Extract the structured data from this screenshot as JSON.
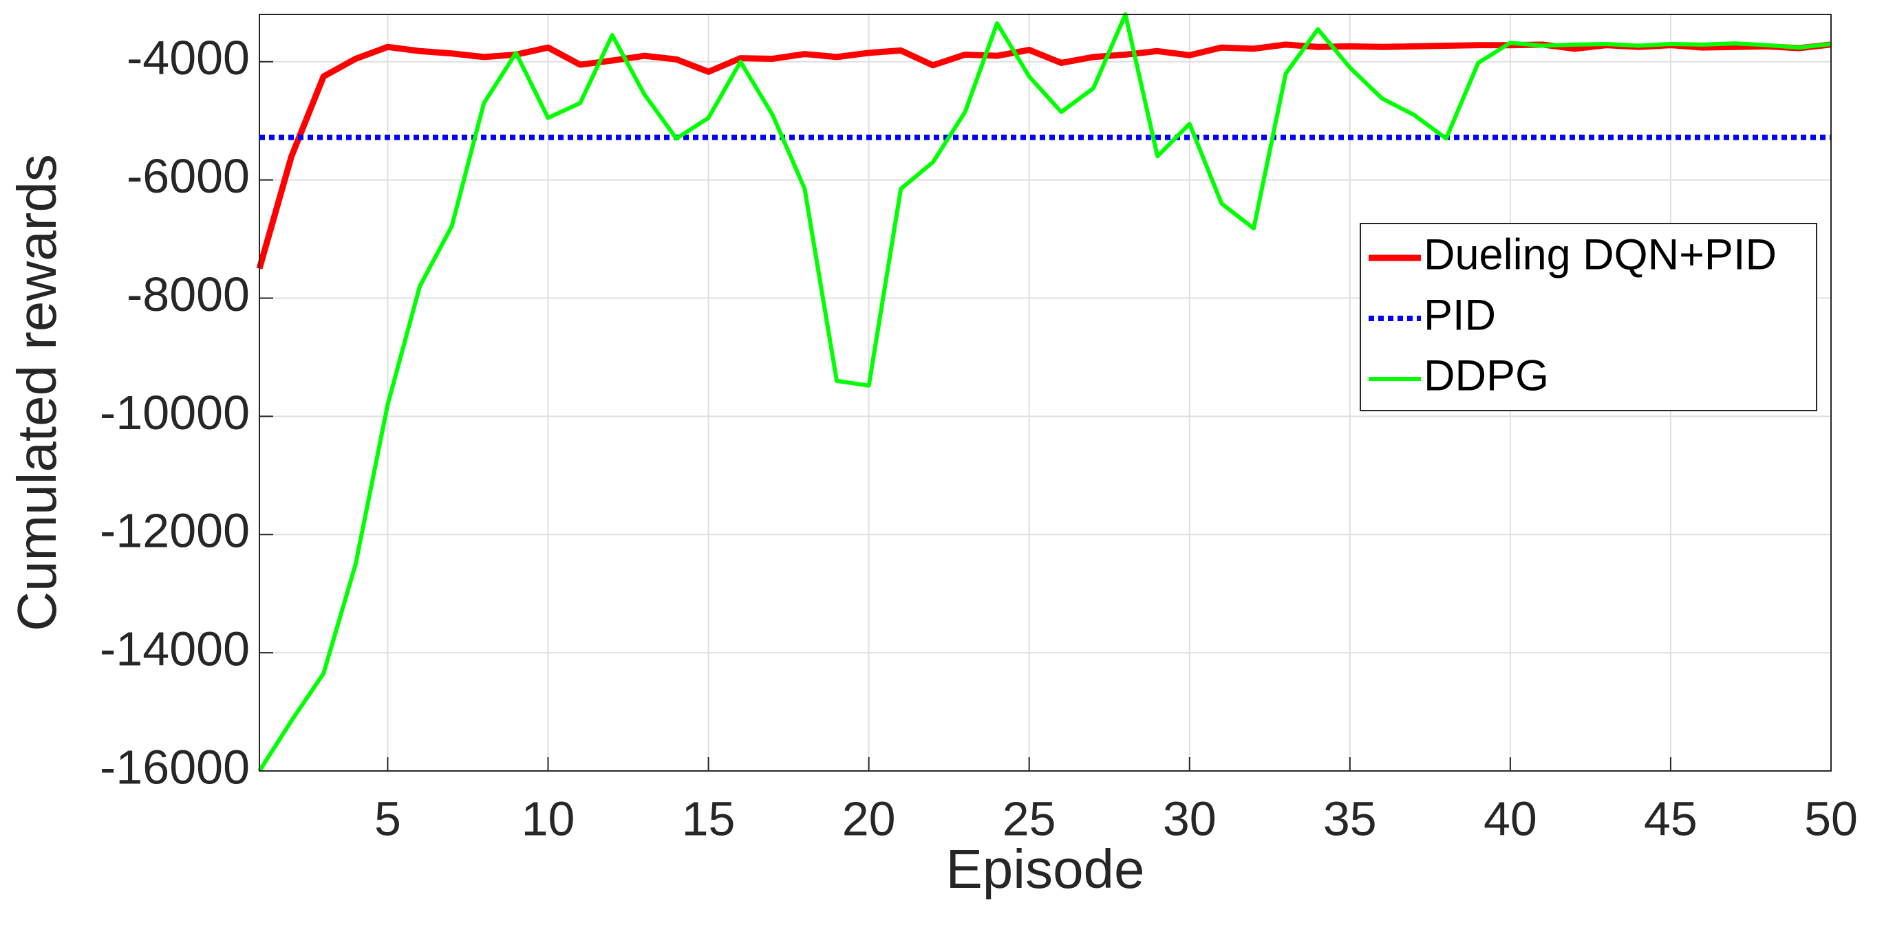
{
  "chart_data": {
    "type": "line",
    "xlabel": "Episode",
    "ylabel": "Cumulated rewards",
    "x": [
      1,
      2,
      3,
      4,
      5,
      6,
      7,
      8,
      9,
      10,
      11,
      12,
      13,
      14,
      15,
      16,
      17,
      18,
      19,
      20,
      21,
      22,
      23,
      24,
      25,
      26,
      27,
      28,
      29,
      30,
      31,
      32,
      33,
      34,
      35,
      36,
      37,
      38,
      39,
      40,
      41,
      42,
      43,
      44,
      45,
      46,
      47,
      48,
      49,
      50
    ],
    "series": [
      {
        "name": "Dueling DQN+PID",
        "color": "#ff0000",
        "style": "solid",
        "values": [
          -7500,
          -5600,
          -4250,
          -3950,
          -3750,
          -3820,
          -3860,
          -3920,
          -3880,
          -3760,
          -4050,
          -3980,
          -3900,
          -3960,
          -4170,
          -3940,
          -3950,
          -3870,
          -3920,
          -3850,
          -3810,
          -4060,
          -3880,
          -3900,
          -3800,
          -4020,
          -3920,
          -3880,
          -3820,
          -3890,
          -3760,
          -3780,
          -3710,
          -3750,
          -3740,
          -3750,
          -3740,
          -3730,
          -3720,
          -3720,
          -3710,
          -3780,
          -3720,
          -3750,
          -3720,
          -3760,
          -3750,
          -3740,
          -3770,
          -3710
        ]
      },
      {
        "name": "PID",
        "color": "#0000ff",
        "style": "dotted",
        "values": [
          -5280,
          -5280,
          -5280,
          -5280,
          -5280,
          -5280,
          -5280,
          -5280,
          -5280,
          -5280,
          -5280,
          -5280,
          -5280,
          -5280,
          -5280,
          -5280,
          -5280,
          -5280,
          -5280,
          -5280,
          -5280,
          -5280,
          -5280,
          -5280,
          -5280,
          -5280,
          -5280,
          -5280,
          -5280,
          -5280,
          -5280,
          -5280,
          -5280,
          -5280,
          -5280,
          -5280,
          -5280,
          -5280,
          -5280,
          -5280,
          -5280,
          -5280,
          -5280,
          -5280,
          -5280,
          -5280,
          -5280,
          -5280,
          -5280,
          -5280
        ]
      },
      {
        "name": "DDPG",
        "color": "#00ff00",
        "style": "solid",
        "values": [
          -16000,
          -15150,
          -14350,
          -12500,
          -9800,
          -7800,
          -6780,
          -4700,
          -3850,
          -4950,
          -4700,
          -3550,
          -4550,
          -5300,
          -4950,
          -4000,
          -4900,
          -6150,
          -9400,
          -9480,
          -6150,
          -5700,
          -4850,
          -3350,
          -4250,
          -4850,
          -4450,
          -3200,
          -5600,
          -5050,
          -6400,
          -6820,
          -4200,
          -3450,
          -4100,
          -4620,
          -4900,
          -5300,
          -4020,
          -3680,
          -3730,
          -3710,
          -3700,
          -3730,
          -3700,
          -3710,
          -3690,
          -3720,
          -3760,
          -3700
        ]
      }
    ],
    "xlim": [
      1,
      50
    ],
    "xticks": [
      5,
      10,
      15,
      20,
      25,
      30,
      35,
      40,
      45,
      50
    ],
    "ylim": [
      -16000,
      -3200
    ],
    "yticks": [
      -16000,
      -14000,
      -12000,
      -10000,
      -8000,
      -6000,
      -4000
    ],
    "grid": true,
    "legend": "right"
  }
}
